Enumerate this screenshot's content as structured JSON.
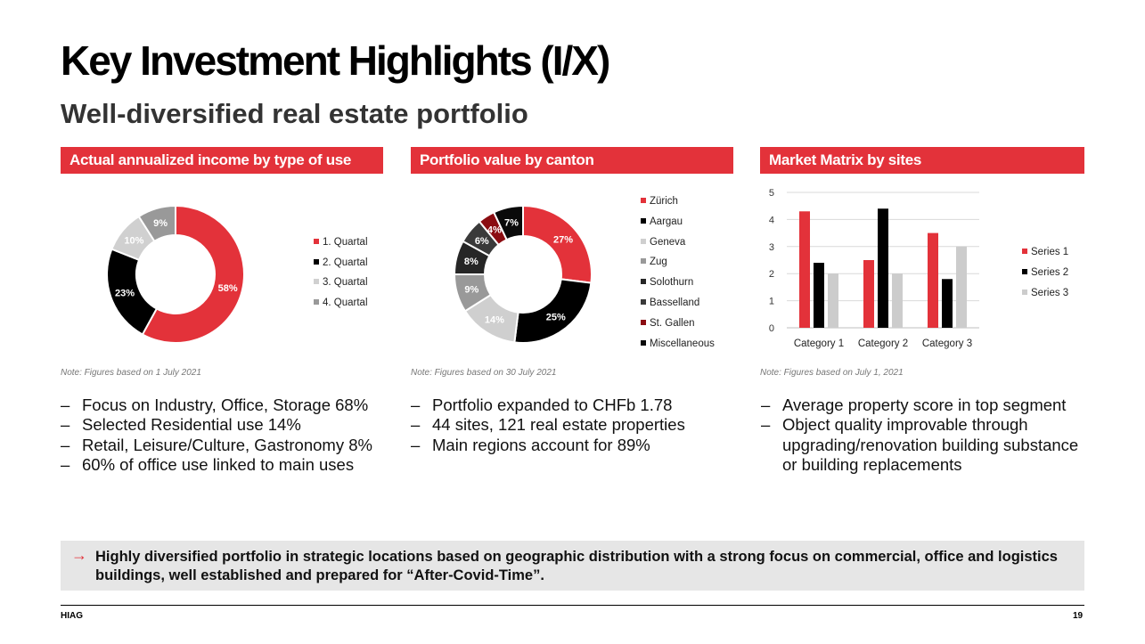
{
  "title": "Key Investment Highlights (I/X)",
  "subtitle": "Well-diversified real estate portfolio",
  "accent": "#e3323a",
  "sections": [
    {
      "heading": "Actual annualized income by type of use",
      "note": "Note: Figures based on 1 July 2021",
      "bullets": [
        "Focus on Industry, Office, Storage 68%",
        "Selected Residential use 14%",
        "Retail, Leisure/Culture, Gastronomy 8%",
        "60% of office use linked to main uses"
      ]
    },
    {
      "heading": "Portfolio value by canton",
      "note": "Note: Figures based on 30 July 2021",
      "bullets": [
        "Portfolio expanded to CHFb 1.78",
        "44 sites, 121 real estate properties",
        "Main regions account for 89%"
      ]
    },
    {
      "heading": "Market Matrix by sites",
      "note": "Note: Figures based on July 1, 2021",
      "bullets": [
        "Average property score in top segment",
        "Object quality improvable through upgrading/renovation building substance or building replacements"
      ]
    }
  ],
  "callout": {
    "arrow": "→",
    "text": "Highly diversified portfolio in strategic locations based on geographic distribution with a strong focus on commercial, office and logistics buildings, well established and prepared for “After-Covid-Time”."
  },
  "footer": {
    "left": "HIAG",
    "page": "19"
  },
  "chart_data": [
    {
      "type": "pie",
      "variant": "doughnut",
      "categories": [
        "1. Quartal",
        "2. Quartal",
        "3. Quartal",
        "4. Quartal"
      ],
      "values": [
        58,
        23,
        10,
        9
      ],
      "labels": [
        "58%",
        "23%",
        "10%",
        "9%"
      ],
      "colors": [
        "#e3323a",
        "#000000",
        "#d0d0d0",
        "#999999"
      ],
      "label_colors": [
        "#ffffff",
        "#ffffff",
        "#ffffff",
        "#ffffff"
      ],
      "legend_position": "right"
    },
    {
      "type": "pie",
      "variant": "doughnut",
      "categories": [
        "Zürich",
        "Aargau",
        "Geneva",
        "Zug",
        "Solothurn",
        "Basselland",
        "St. Gallen",
        "Miscellaneous"
      ],
      "values": [
        27,
        25,
        14,
        9,
        8,
        6,
        4,
        7
      ],
      "labels": [
        "27%",
        "25%",
        "14%",
        "9%",
        "8%",
        "6%",
        "4%",
        "7%"
      ],
      "colors": [
        "#e3323a",
        "#000000",
        "#cfcfcf",
        "#999999",
        "#262626",
        "#3a3a3a",
        "#8b0d12",
        "#0a0a0a"
      ],
      "label_colors": [
        "#ffffff",
        "#ffffff",
        "#ffffff",
        "#ffffff",
        "#ffffff",
        "#ffffff",
        "#ffffff",
        "#ffffff"
      ],
      "legend_position": "right"
    },
    {
      "type": "bar",
      "categories": [
        "Category 1",
        "Category 2",
        "Category 3"
      ],
      "series": [
        {
          "name": "Series 1",
          "values": [
            4.3,
            2.5,
            3.5
          ],
          "color": "#e3323a"
        },
        {
          "name": "Series 2",
          "values": [
            2.4,
            4.4,
            1.8
          ],
          "color": "#000000"
        },
        {
          "name": "Series 3",
          "values": [
            2.0,
            2.0,
            3.0
          ],
          "color": "#cccccc"
        }
      ],
      "yticks": [
        "0",
        "1",
        "2",
        "3",
        "4",
        "5"
      ],
      "ylim": [
        0,
        5
      ],
      "grid": true,
      "legend_position": "right"
    }
  ]
}
